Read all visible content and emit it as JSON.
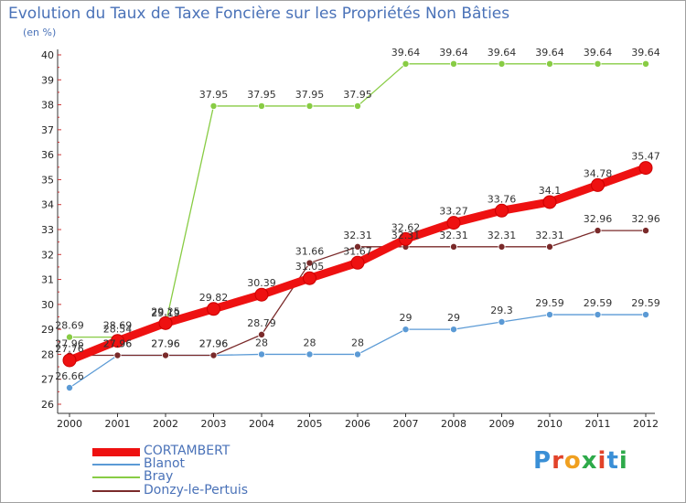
{
  "title": "Evolution du Taux de Taxe Foncière sur les Propriétés Non Bâties",
  "unit": "(en %)",
  "logo": "Proxiti",
  "chart_data": {
    "type": "line",
    "x": [
      "2000",
      "2001",
      "2002",
      "2003",
      "2004",
      "2005",
      "2006",
      "2007",
      "2008",
      "2009",
      "2010",
      "2011",
      "2012"
    ],
    "y_ticks": [
      "26",
      "27",
      "28",
      "29",
      "30",
      "31",
      "32",
      "33",
      "34",
      "35",
      "36",
      "37",
      "38",
      "39",
      "40"
    ],
    "ylim": [
      26,
      40
    ],
    "grid": false,
    "legend_position": "bottom-left",
    "series": [
      {
        "name": "CORTAMBERT",
        "color": "#ee1111",
        "values": [
          27.76,
          28.54,
          29.25,
          29.82,
          30.39,
          31.05,
          31.67,
          32.62,
          33.27,
          33.76,
          34.1,
          34.78,
          35.47
        ],
        "labels": [
          "27.76",
          "28.54",
          "29.25",
          "29.82",
          "30.39",
          "31.05",
          "31.67",
          "32.62",
          "33.27",
          "33.76",
          "34.1",
          "34.78",
          "35.47"
        ]
      },
      {
        "name": "Blanot",
        "color": "#5b9ad5",
        "values": [
          26.66,
          27.96,
          27.96,
          27.96,
          28,
          28,
          28,
          29,
          29,
          29.3,
          29.59,
          29.59,
          29.59
        ],
        "labels": [
          "26.66",
          "27.96",
          "27.96",
          "27.96",
          "28",
          "28",
          "28",
          "29",
          "29",
          "29.3",
          "29.59",
          "29.59",
          "29.59"
        ]
      },
      {
        "name": "Bray",
        "color": "#88cc44",
        "values": [
          28.69,
          28.69,
          29.19,
          37.95,
          37.95,
          37.95,
          37.95,
          39.64,
          39.64,
          39.64,
          39.64,
          39.64,
          39.64
        ],
        "labels": [
          "28.69",
          "28.69",
          "29.19",
          "37.95",
          "37.95",
          "37.95",
          "37.95",
          "39.64",
          "39.64",
          "39.64",
          "39.64",
          "39.64",
          "39.64"
        ]
      },
      {
        "name": "Donzy-le-Pertuis",
        "color": "#7a2a2a",
        "values": [
          27.96,
          27.96,
          27.96,
          27.96,
          28.79,
          31.66,
          32.31,
          32.31,
          32.31,
          32.31,
          32.31,
          32.96,
          32.96
        ],
        "labels": [
          "27.96",
          "27.96",
          "27.96",
          "27.96",
          "28.79",
          "31.66",
          "32.31",
          "32.31",
          "32.31",
          "32.31",
          "32.31",
          "32.96",
          "32.96"
        ]
      }
    ]
  }
}
